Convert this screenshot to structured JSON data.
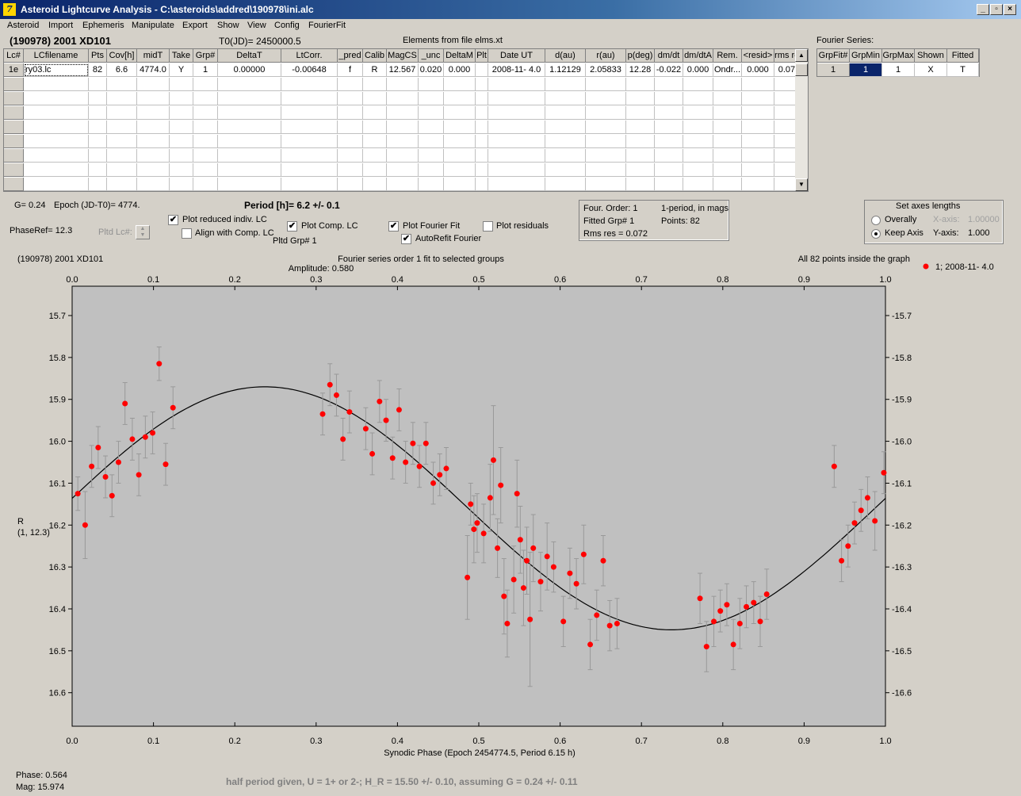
{
  "window": {
    "title": "Asteroid Lightcurve Analysis - C:\\asteroids\\addred\\190978\\ini.alc",
    "icon_glyph": "7"
  },
  "menu": [
    "Asteroid",
    "Import",
    "Ephemeris",
    "Manipulate",
    "Export",
    "Show",
    "View",
    "Config",
    "FourierFit"
  ],
  "header": {
    "asteroid": "(190978) 2001 XD101",
    "t0": "T0(JD)= 2450000.5",
    "elements": "Elements from file elms.xt"
  },
  "lc_table": {
    "columns": [
      "Lc#",
      "LCfilename",
      "Pts",
      "Cov[h]",
      "midT",
      "Take",
      "Grp#",
      "DeltaT",
      "LtCorr.",
      "_pred",
      "Calib",
      "MagCS",
      "_unc",
      "DeltaM",
      "Plt",
      "Date UT",
      "d(au)",
      "r(au)",
      "p(deg)",
      "dm/dt",
      "dm/dtA",
      "Rem.",
      "<resid>",
      "rms res"
    ],
    "rows": [
      [
        "1e",
        "ry03.lc",
        "82",
        "6.6",
        "4774.0",
        "Y",
        "1",
        "0.00000",
        "-0.00648",
        "f",
        "R",
        "12.567",
        "0.020",
        "0.000",
        "",
        "2008-11- 4.0",
        "1.12129",
        "2.05833",
        "12.28",
        "-0.022",
        "0.000",
        "Ondr...",
        "0.000",
        "0.071"
      ]
    ]
  },
  "fourier_panel": {
    "title": "Fourier Series:",
    "columns": [
      "GrpFit#",
      "GrpMin",
      "GrpMax",
      "Shown",
      "Fitted"
    ],
    "row": [
      "1",
      "1",
      "1",
      "X",
      "T"
    ]
  },
  "params": {
    "g": "G= 0.24",
    "epoch": "Epoch (JD-T0)= 4774.",
    "period": "Period [h]= 6.2 +/- 0.1",
    "phaseref": "PhaseRef= 12.3",
    "pltd_lc": "Pltd Lc#:",
    "pltd_grp": "Pltd Grp#  1"
  },
  "options": {
    "plot_reduced": "Plot reduced indiv. LC",
    "align_comp": "Align with Comp. LC",
    "plot_comp": "Plot Comp. LC",
    "plot_fourier": "Plot Fourier Fit",
    "autorefit": "AutoRefit Fourier",
    "plot_residuals": "Plot residuals",
    "check_mark": "✔"
  },
  "fit_info": {
    "order": "Four. Order:  1",
    "mode": "1-period, in mags",
    "fitted": "Fitted Grp# 1",
    "points": "Points: 82",
    "rms": "Rms res     = 0.072"
  },
  "axes_box": {
    "title": "Set axes lengths",
    "overally": "Overally",
    "keep": "Keep Axis",
    "xaxis_label": "X-axis:",
    "xaxis_value": "1.00000",
    "yaxis_label": "Y-axis:",
    "yaxis_value": "1.000"
  },
  "plot_header": {
    "left": "(190978) 2001 XD101",
    "center1": "Fourier series order 1 fit to selected groups",
    "center2": "Amplitude: 0.580",
    "right": "All 82 points inside the graph",
    "legend": "1; 2008-11- 4.0"
  },
  "status": {
    "phase": "Phase:  0.564",
    "mag": "Mag:    15.974",
    "note": "half period given, U = 1+ or 2-; H_R = 15.50 +/- 0.10, assuming G = 0.24 +/- 0.11"
  },
  "colors": {
    "point": "#ff0000",
    "errorbar": "#999999",
    "plot_bg": "#c0c0c0",
    "curve": "#000000"
  },
  "chart_data": {
    "type": "scatter",
    "xlabel": "Synodic Phase (Epoch 2454774.5, Period 6.15 h)",
    "ylabel": "R",
    "ylabel2": "(1, 12.3)",
    "xlim": [
      0,
      1
    ],
    "ylim": [
      16.68,
      15.63
    ],
    "xticks": [
      "0.0",
      "0.1",
      "0.2",
      "0.3",
      "0.4",
      "0.5",
      "0.6",
      "0.7",
      "0.8",
      "0.9",
      "1.0"
    ],
    "yticks": [
      "15.7",
      "15.8",
      "15.9",
      "16.0",
      "16.1",
      "16.2",
      "16.3",
      "16.4",
      "16.5",
      "16.6"
    ],
    "fit": {
      "mean": 16.16,
      "amplitude": 0.29,
      "phase_min": 0.237
    },
    "series": [
      {
        "name": "1; 2008-11- 4.0",
        "points": [
          [
            0.007,
            16.125,
            0.04
          ],
          [
            0.016,
            16.2,
            0.08
          ],
          [
            0.024,
            16.06,
            0.05
          ],
          [
            0.032,
            16.015,
            0.05
          ],
          [
            0.041,
            16.085,
            0.05
          ],
          [
            0.049,
            16.13,
            0.05
          ],
          [
            0.057,
            16.05,
            0.05
          ],
          [
            0.065,
            15.91,
            0.05
          ],
          [
            0.074,
            15.995,
            0.05
          ],
          [
            0.082,
            16.08,
            0.05
          ],
          [
            0.09,
            15.99,
            0.05
          ],
          [
            0.099,
            15.98,
            0.05
          ],
          [
            0.107,
            15.815,
            0.04
          ],
          [
            0.115,
            16.055,
            0.05
          ],
          [
            0.124,
            15.92,
            0.05
          ],
          [
            0.308,
            15.935,
            0.05
          ],
          [
            0.317,
            15.865,
            0.05
          ],
          [
            0.325,
            15.89,
            0.05
          ],
          [
            0.333,
            15.995,
            0.05
          ],
          [
            0.341,
            15.93,
            0.05
          ],
          [
            0.361,
            15.97,
            0.05
          ],
          [
            0.369,
            16.03,
            0.05
          ],
          [
            0.378,
            15.905,
            0.05
          ],
          [
            0.386,
            15.95,
            0.05
          ],
          [
            0.394,
            16.04,
            0.05
          ],
          [
            0.402,
            15.925,
            0.05
          ],
          [
            0.41,
            16.05,
            0.05
          ],
          [
            0.419,
            16.005,
            0.05
          ],
          [
            0.427,
            16.06,
            0.05
          ],
          [
            0.435,
            16.005,
            0.05
          ],
          [
            0.444,
            16.1,
            0.05
          ],
          [
            0.452,
            16.08,
            0.05
          ],
          [
            0.46,
            16.065,
            0.05
          ],
          [
            0.486,
            16.325,
            0.1
          ],
          [
            0.49,
            16.15,
            0.05
          ],
          [
            0.494,
            16.21,
            0.08
          ],
          [
            0.498,
            16.195,
            0.07
          ],
          [
            0.506,
            16.22,
            0.07
          ],
          [
            0.514,
            16.135,
            0.08
          ],
          [
            0.518,
            16.045,
            0.13
          ],
          [
            0.523,
            16.255,
            0.07
          ],
          [
            0.527,
            16.105,
            0.09
          ],
          [
            0.531,
            16.37,
            0.09
          ],
          [
            0.535,
            16.435,
            0.08
          ],
          [
            0.543,
            16.33,
            0.08
          ],
          [
            0.547,
            16.125,
            0.08
          ],
          [
            0.551,
            16.235,
            0.08
          ],
          [
            0.555,
            16.35,
            0.09
          ],
          [
            0.559,
            16.285,
            0.08
          ],
          [
            0.563,
            16.425,
            0.16
          ],
          [
            0.567,
            16.255,
            0.08
          ],
          [
            0.576,
            16.335,
            0.07
          ],
          [
            0.584,
            16.275,
            0.08
          ],
          [
            0.592,
            16.3,
            0.06
          ],
          [
            0.604,
            16.43,
            0.06
          ],
          [
            0.612,
            16.315,
            0.06
          ],
          [
            0.62,
            16.34,
            0.06
          ],
          [
            0.629,
            16.27,
            0.07
          ],
          [
            0.637,
            16.485,
            0.06
          ],
          [
            0.645,
            16.415,
            0.06
          ],
          [
            0.653,
            16.285,
            0.06
          ],
          [
            0.661,
            16.44,
            0.06
          ],
          [
            0.67,
            16.435,
            0.06
          ],
          [
            0.772,
            16.375,
            0.06
          ],
          [
            0.78,
            16.49,
            0.06
          ],
          [
            0.789,
            16.43,
            0.06
          ],
          [
            0.797,
            16.405,
            0.05
          ],
          [
            0.805,
            16.39,
            0.05
          ],
          [
            0.813,
            16.485,
            0.06
          ],
          [
            0.821,
            16.435,
            0.06
          ],
          [
            0.829,
            16.395,
            0.05
          ],
          [
            0.838,
            16.385,
            0.05
          ],
          [
            0.846,
            16.43,
            0.06
          ],
          [
            0.854,
            16.365,
            0.06
          ],
          [
            0.937,
            16.06,
            0.05
          ],
          [
            0.946,
            16.285,
            0.05
          ],
          [
            0.954,
            16.25,
            0.05
          ],
          [
            0.962,
            16.195,
            0.05
          ],
          [
            0.97,
            16.165,
            0.05
          ],
          [
            0.978,
            16.135,
            0.05
          ],
          [
            0.987,
            16.19,
            0.07
          ],
          [
            0.998,
            16.075,
            0.05
          ]
        ]
      }
    ]
  }
}
